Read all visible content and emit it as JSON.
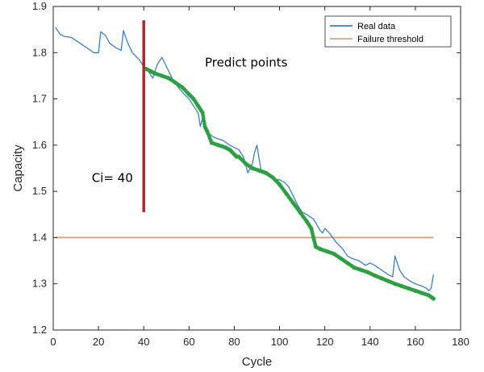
{
  "chart_data": {
    "type": "line",
    "xlabel": "Cycle",
    "ylabel": "Capacity",
    "xlim": [
      0,
      180
    ],
    "ylim": [
      1.2,
      1.9
    ],
    "xticks": [
      0,
      20,
      40,
      60,
      80,
      100,
      120,
      140,
      160,
      180
    ],
    "yticks": [
      1.2,
      1.3,
      1.4,
      1.5,
      1.6,
      1.7,
      1.8,
      1.9
    ],
    "grid": false,
    "legend_position": "top-right",
    "series": [
      {
        "name": "Real data",
        "color": "#3a7fc1",
        "x": [
          1,
          3,
          5,
          8,
          12,
          15,
          18,
          20,
          21,
          23,
          25,
          28,
          30,
          31,
          33,
          35,
          38,
          40,
          42,
          44,
          46,
          48,
          50,
          53,
          56,
          60,
          62,
          64,
          65,
          66,
          68,
          70,
          72,
          75,
          78,
          80,
          82,
          84,
          86,
          88,
          89,
          90,
          92,
          95,
          98,
          100,
          102,
          104,
          106,
          108,
          110,
          112,
          115,
          118,
          119,
          120,
          122,
          125,
          128,
          130,
          132,
          135,
          138,
          140,
          142,
          145,
          148,
          150,
          151,
          153,
          155,
          158,
          160,
          163,
          165,
          166,
          167,
          168
        ],
        "y": [
          1.855,
          1.84,
          1.835,
          1.833,
          1.82,
          1.81,
          1.8,
          1.8,
          1.845,
          1.838,
          1.82,
          1.81,
          1.805,
          1.848,
          1.82,
          1.8,
          1.785,
          1.77,
          1.76,
          1.745,
          1.775,
          1.79,
          1.77,
          1.74,
          1.72,
          1.7,
          1.685,
          1.67,
          1.64,
          1.66,
          1.63,
          1.62,
          1.615,
          1.61,
          1.6,
          1.595,
          1.59,
          1.575,
          1.54,
          1.56,
          1.585,
          1.6,
          1.54,
          1.535,
          1.525,
          1.525,
          1.52,
          1.51,
          1.49,
          1.47,
          1.455,
          1.45,
          1.44,
          1.415,
          1.41,
          1.42,
          1.41,
          1.39,
          1.375,
          1.36,
          1.355,
          1.35,
          1.34,
          1.345,
          1.34,
          1.33,
          1.32,
          1.315,
          1.36,
          1.33,
          1.315,
          1.305,
          1.3,
          1.295,
          1.29,
          1.285,
          1.29,
          1.32
        ]
      },
      {
        "name": "Failure threshold",
        "color": "#d9a58a",
        "x": [
          1,
          168
        ],
        "y": [
          1.4,
          1.4
        ]
      },
      {
        "name": "Predict points",
        "color": "#2ea043",
        "x": [
          41,
          43,
          45,
          48,
          51,
          54,
          57,
          60,
          62,
          64,
          66,
          67,
          68,
          70,
          73,
          76,
          78,
          80,
          81,
          82,
          85,
          88,
          91,
          94,
          97,
          100,
          103,
          106,
          109,
          112,
          114,
          115,
          116,
          118,
          121,
          124,
          127,
          130,
          133,
          136,
          139,
          142,
          145,
          148,
          151,
          154,
          157,
          160,
          163,
          166,
          168
        ],
        "y": [
          1.765,
          1.76,
          1.755,
          1.75,
          1.745,
          1.735,
          1.725,
          1.71,
          1.7,
          1.685,
          1.67,
          1.64,
          1.63,
          1.605,
          1.6,
          1.595,
          1.59,
          1.58,
          1.575,
          1.575,
          1.56,
          1.55,
          1.545,
          1.54,
          1.53,
          1.515,
          1.495,
          1.475,
          1.455,
          1.435,
          1.42,
          1.4,
          1.38,
          1.375,
          1.37,
          1.365,
          1.355,
          1.345,
          1.335,
          1.33,
          1.325,
          1.318,
          1.312,
          1.306,
          1.3,
          1.295,
          1.29,
          1.285,
          1.28,
          1.275,
          1.268
        ]
      }
    ],
    "annotations": [
      {
        "text": "Predict points",
        "x": 67,
        "y": 1.77
      },
      {
        "text": "Ci= 40",
        "x": 17,
        "y": 1.52
      }
    ],
    "marker_line": {
      "x": 40,
      "y_range": [
        1.455,
        1.87
      ],
      "color": "#c0202a"
    }
  }
}
